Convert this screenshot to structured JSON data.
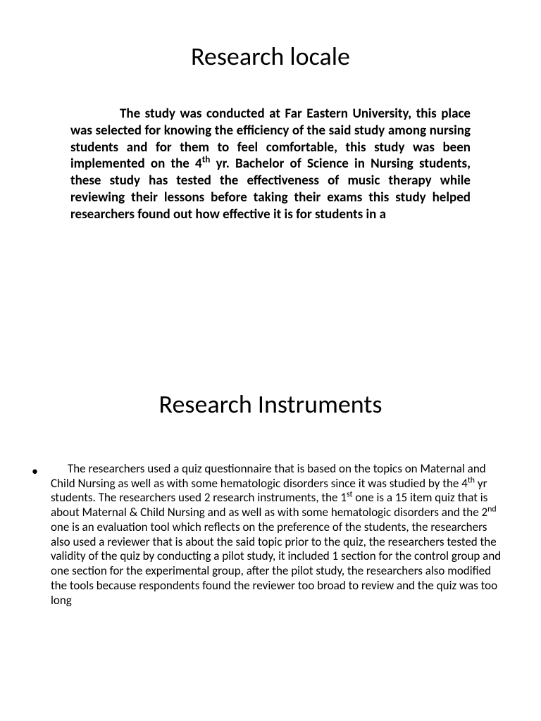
{
  "slide1": {
    "title": "Research locale",
    "paragraph_html": "The study was conducted at Far Eastern University, this  place was selected for knowing the efficiency of the said study among nursing students and for them to feel comfortable, this study was been implemented on the 4<sup>th</sup> yr. Bachelor of Science in Nursing students, these study has tested the effectiveness of music therapy while reviewing their lessons before taking their exams this study helped researchers found out how effective it is for students in a"
  },
  "slide2": {
    "title": "Research Instruments",
    "paragraph_html": "The researchers used a quiz questionnaire that is based on the topics on Maternal and Child Nursing as well as with some hematologic disorders since it was studied by the 4<sup>th</sup> yr students. The researchers used 2 research instruments, the 1<sup>st</sup> one is a 15 item quiz that is about Maternal & Child Nursing and as well as with some hematologic disorders and the 2<sup>nd</sup> one is an evaluation tool which reflects on the preference of the students, the researchers also used a reviewer that is about the said topic prior to the quiz, the researchers tested the validity of the quiz by conducting a pilot study, it included 1 section for the control group and one section for the experimental group, after the pilot study, the researchers also modified the tools because respondents found the reviewer too broad to review and the quiz was too long"
  },
  "style": {
    "background_color": "#ffffff",
    "text_color": "#000000",
    "title_fontsize": 36,
    "body1_fontsize": 19,
    "body1_fontweight": 700,
    "body2_fontsize": 17,
    "body2_fontweight": 400,
    "font_family": "Calibri"
  }
}
